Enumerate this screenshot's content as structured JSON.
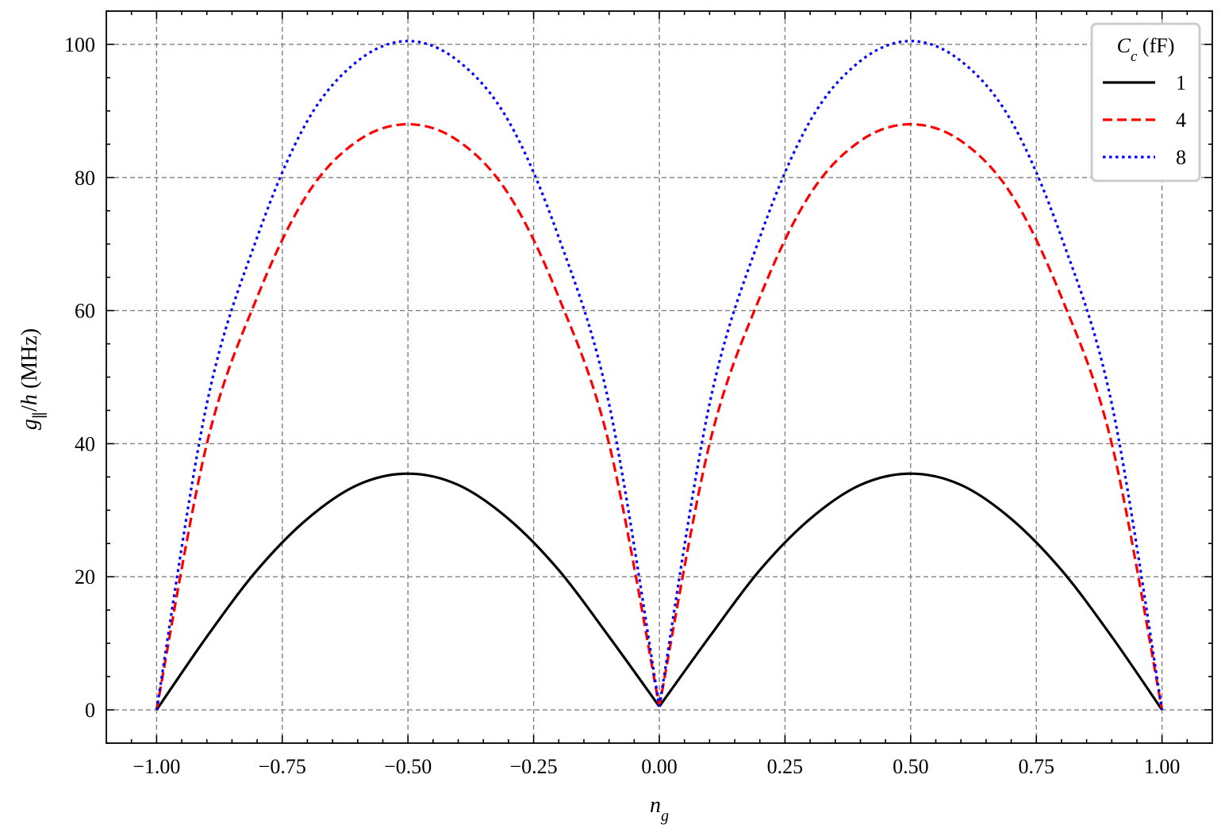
{
  "chart_data": {
    "type": "line",
    "title": "",
    "xlabel": "n_g",
    "ylabel": "g_∥/h (MHz)",
    "xlim": [
      -1.1,
      1.1
    ],
    "ylim": [
      -5,
      105
    ],
    "x_ticks": [
      "−1.00",
      "−0.75",
      "−0.50",
      "−0.25",
      "0.00",
      "0.25",
      "0.50",
      "0.75",
      "1.00"
    ],
    "y_ticks": [
      "0",
      "20",
      "40",
      "60",
      "80",
      "100"
    ],
    "grid": true,
    "legend": {
      "title": "C_c (fF)",
      "position": "top-right"
    },
    "x": [
      -1.0,
      -0.9,
      -0.8,
      -0.7,
      -0.6,
      -0.5,
      -0.4,
      -0.3,
      -0.2,
      -0.1,
      0.0,
      0.1,
      0.2,
      0.3,
      0.4,
      0.5,
      0.6,
      0.7,
      0.8,
      0.9,
      1.0
    ],
    "series": [
      {
        "name": "1",
        "color": "#000000",
        "style": "solid",
        "values": [
          0,
          11,
          21,
          28.7,
          33.8,
          35.5,
          33.8,
          28.7,
          21,
          11,
          0.5,
          11,
          21,
          28.7,
          33.8,
          35.5,
          33.8,
          28.7,
          21,
          11,
          0
        ]
      },
      {
        "name": "4",
        "color": "#ff0000",
        "style": "dashed",
        "values": [
          0,
          40,
          62,
          77.5,
          85.5,
          88,
          85.5,
          77.5,
          62,
          40,
          0.5,
          40,
          62,
          77.5,
          85.5,
          88,
          85.5,
          77.5,
          62,
          40,
          0
        ]
      },
      {
        "name": "8",
        "color": "#0000ff",
        "style": "dotted",
        "values": [
          0,
          46,
          71,
          88.5,
          97.5,
          100.5,
          97.5,
          88.5,
          71,
          46,
          0.5,
          46,
          71,
          88.5,
          97.5,
          100.5,
          97.5,
          88.5,
          71,
          46,
          0
        ]
      }
    ]
  }
}
